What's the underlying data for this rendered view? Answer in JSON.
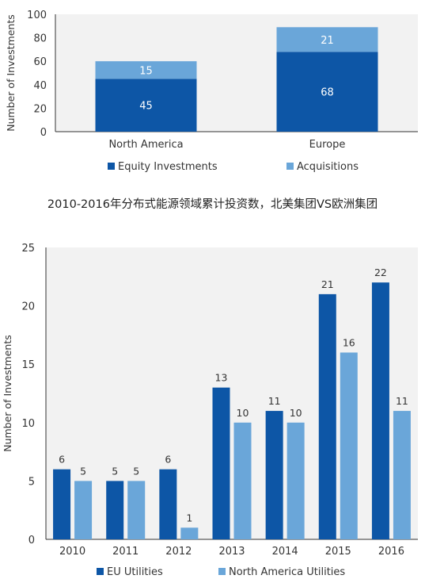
{
  "mid_title": "2010-2016年分布式能源领域累计投资数，北美集团VS欧洲集团",
  "colors": {
    "dark": "#0d56a6",
    "light": "#6aa6d9",
    "axis": "#333333",
    "panel": "#f2f2f2"
  },
  "chart_data": [
    {
      "type": "bar",
      "stacked": true,
      "categories": [
        "North America",
        "Europe"
      ],
      "series": [
        {
          "name": "Equity Investments",
          "values": [
            45,
            68
          ]
        },
        {
          "name": "Acquisitions",
          "values": [
            15,
            21
          ]
        }
      ],
      "title": "",
      "xlabel": "",
      "ylabel": "Number of Investments",
      "ylim": [
        0,
        100
      ],
      "yticks": [
        0,
        20,
        40,
        60,
        80,
        100
      ],
      "grid": false,
      "legend": "bottom"
    },
    {
      "type": "bar",
      "stacked": false,
      "categories": [
        "2010",
        "2011",
        "2012",
        "2013",
        "2014",
        "2015",
        "2016"
      ],
      "series": [
        {
          "name": "EU Utilities",
          "values": [
            6,
            5,
            6,
            13,
            11,
            21,
            22
          ]
        },
        {
          "name": "North America Utilities",
          "values": [
            5,
            5,
            1,
            10,
            10,
            16,
            11
          ]
        }
      ],
      "title": "",
      "xlabel": "",
      "ylabel": "Number of Investments",
      "ylim": [
        0,
        25
      ],
      "yticks": [
        0,
        5,
        10,
        15,
        20,
        25
      ],
      "grid": false,
      "legend": "bottom"
    }
  ]
}
